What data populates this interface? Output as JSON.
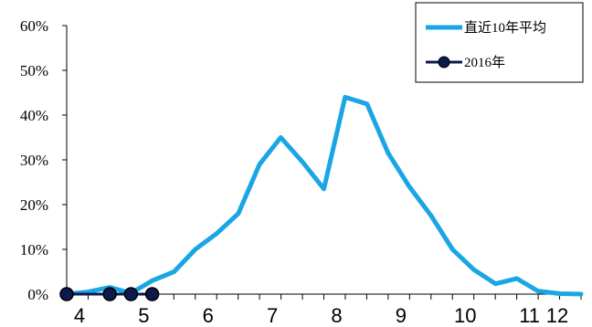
{
  "chart_data": {
    "type": "line",
    "xlim": [
      4,
      12
    ],
    "ylim": [
      0,
      60
    ],
    "y_ticks": [
      0,
      10,
      20,
      30,
      40,
      50,
      60
    ],
    "y_tick_labels": [
      "0%",
      "10%",
      "20%",
      "30%",
      "40%",
      "50%",
      "60%"
    ],
    "x_ticks": [
      4,
      5,
      6,
      7,
      8,
      9,
      10,
      11,
      12
    ],
    "x_tick_labels": [
      "4",
      "5",
      "6",
      "7",
      "8",
      "9",
      "10",
      "11",
      "12"
    ],
    "grid": false,
    "legend_position": "top-right",
    "series": [
      {
        "name": "直近10年平均",
        "color": "#1aa6e4",
        "marker": "none",
        "x": [
          4.0,
          4.33,
          4.67,
          5.0,
          5.33,
          5.67,
          6.0,
          6.33,
          6.67,
          7.0,
          7.33,
          7.67,
          8.0,
          8.33,
          8.67,
          9.0,
          9.33,
          9.67,
          10.0,
          10.33,
          10.67,
          11.0,
          11.33,
          11.67,
          12.0
        ],
        "values": [
          0,
          0.5,
          1.5,
          0.2,
          3,
          5,
          10,
          13.5,
          18,
          29,
          35,
          29.5,
          23.5,
          44,
          42.5,
          31.5,
          24,
          17.5,
          10,
          5.5,
          2.3,
          3.5,
          0.7,
          0.1,
          0
        ]
      },
      {
        "name": "2016年",
        "color": "#0d1a4d",
        "marker": "circle",
        "x": [
          4.0,
          4.67,
          5.0,
          5.33
        ],
        "values": [
          0,
          0,
          0,
          0
        ]
      }
    ]
  }
}
